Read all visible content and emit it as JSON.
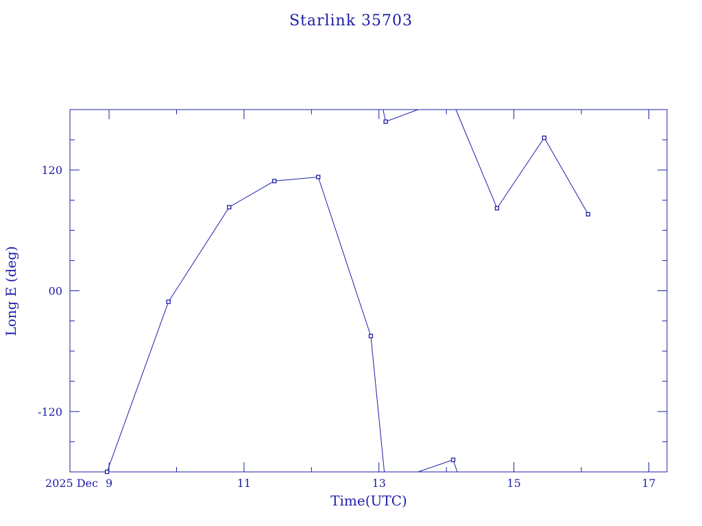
{
  "chart_data": {
    "type": "line",
    "title": "Starlink 35703",
    "xlabel": "Time(UTC)",
    "ylabel": "Long E (deg)",
    "x_tick_prefix": "2025 Dec",
    "x_unit": "day of December 2025 (UTC)",
    "xlim": [
      8.42,
      17.27
    ],
    "ylim": [
      -180,
      180
    ],
    "x_ticks": [
      9,
      11,
      13,
      15,
      17
    ],
    "y_ticks": [
      -120,
      0,
      120
    ],
    "y_tick_labels": [
      "-120",
      "00",
      "120"
    ],
    "grid": false,
    "color": "#1c1ca8",
    "series": [
      {
        "points": [
          {
            "x": 8.97,
            "y": -180
          },
          {
            "x": 9.88,
            "y": -11
          },
          {
            "x": 10.78,
            "y": 83
          },
          {
            "x": 11.45,
            "y": 109
          },
          {
            "x": 12.1,
            "y": 113
          },
          {
            "x": 12.88,
            "y": -45
          },
          {
            "x": 13.08,
            "y": -180
          }
        ]
      },
      {
        "points": [
          {
            "x": 13.06,
            "y": 180
          },
          {
            "x": 13.1,
            "y": 168
          },
          {
            "x": 13.58,
            "y": 180
          }
        ]
      },
      {
        "points": [
          {
            "x": 13.58,
            "y": -180
          },
          {
            "x": 14.1,
            "y": -168
          },
          {
            "x": 14.16,
            "y": -180
          }
        ]
      },
      {
        "points": [
          {
            "x": 14.14,
            "y": 180
          },
          {
            "x": 14.75,
            "y": 82
          },
          {
            "x": 15.45,
            "y": 152
          },
          {
            "x": 16.1,
            "y": 76
          }
        ]
      }
    ],
    "markers": [
      {
        "x": 8.97,
        "y": -180
      },
      {
        "x": 9.88,
        "y": -11
      },
      {
        "x": 10.78,
        "y": 83
      },
      {
        "x": 11.45,
        "y": 109
      },
      {
        "x": 12.1,
        "y": 113
      },
      {
        "x": 12.88,
        "y": -45
      },
      {
        "x": 13.1,
        "y": 168
      },
      {
        "x": 14.1,
        "y": -168
      },
      {
        "x": 14.75,
        "y": 82
      },
      {
        "x": 15.45,
        "y": 152
      },
      {
        "x": 16.1,
        "y": 76
      }
    ]
  }
}
